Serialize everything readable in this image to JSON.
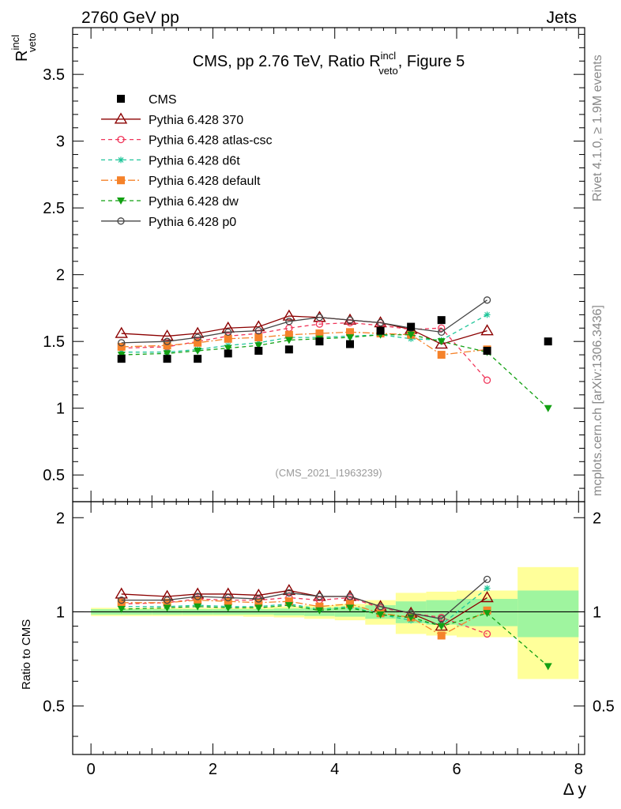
{
  "header": {
    "left": "2760 GeV pp",
    "right": "Jets",
    "title_prefix": "CMS, pp 2.76 TeV, Ratio R",
    "title_sup": "incl",
    "title_sub": "veto",
    "title_suffix": ", Figure 5"
  },
  "side": {
    "rivet": "Rivet 4.1.0, ≥ 1.9M events",
    "mcplots": "mcplots.cern.ch [arXiv:1306.3436]"
  },
  "watermark": "(CMS_2021_I1963239)",
  "colors": {
    "CMS": "#000000",
    "370": "#8b0000",
    "atlas-csc": "#f0365a",
    "d6t": "#20c69a",
    "default": "#f5822a",
    "dw": "#12a012",
    "p0": "#454545",
    "band_inner": "#9ff59f",
    "band_outer": "#ffff9a"
  },
  "chart_data": {
    "type": "scatter",
    "title": "CMS, pp 2.76 TeV, Ratio R_veto^incl, Figure 5",
    "xlabel": "Δ y",
    "ylabel": "R",
    "ylabel_sup": "incl",
    "ylabel_sub": "veto",
    "ratio_ylabel": "Ratio to CMS",
    "xlim": [
      -0.3,
      8.1
    ],
    "ylim": [
      0.3,
      3.85
    ],
    "ratio_ylim": [
      0.35,
      2.25
    ],
    "xticks": [
      0,
      2,
      4,
      6,
      8
    ],
    "xtick_labels": [
      "0",
      "2",
      "4",
      "6",
      "8"
    ],
    "yticks": [
      0.5,
      1,
      1.5,
      2,
      2.5,
      3,
      3.5
    ],
    "ytick_labels": [
      "0.5",
      "1",
      "1.5",
      "2",
      "2.5",
      "3",
      "3.5"
    ],
    "ratio_yticks": [
      0.5,
      1,
      2
    ],
    "ratio_ytick_labels": [
      "0.5",
      "1",
      "2"
    ],
    "data": {
      "name": "CMS",
      "x": [
        0.5,
        1.25,
        1.75,
        2.25,
        2.75,
        3.25,
        3.75,
        4.25,
        4.75,
        5.25,
        5.75,
        6.5,
        7.5
      ],
      "xerr": [
        0.5,
        0.25,
        0.25,
        0.25,
        0.25,
        0.25,
        0.25,
        0.25,
        0.25,
        0.25,
        0.25,
        0.5,
        0.5
      ],
      "y": [
        1.37,
        1.37,
        1.37,
        1.41,
        1.43,
        1.44,
        1.5,
        1.48,
        1.58,
        1.61,
        1.66,
        1.43,
        1.5
      ],
      "band_inner": [
        0.02,
        0.02,
        0.02,
        0.02,
        0.02,
        0.025,
        0.03,
        0.035,
        0.05,
        0.08,
        0.09,
        0.1,
        0.17
      ],
      "band_outer": [
        0.03,
        0.03,
        0.03,
        0.03,
        0.035,
        0.04,
        0.05,
        0.06,
        0.09,
        0.15,
        0.16,
        0.17,
        0.39
      ]
    },
    "series": [
      {
        "name": "Pythia 6.428 370",
        "key": "370",
        "marker": "triangle-open",
        "dash": "",
        "x": [
          0.5,
          1.25,
          1.75,
          2.25,
          2.75,
          3.25,
          3.75,
          4.25,
          4.75,
          5.25,
          5.75,
          6.5
        ],
        "y": [
          1.56,
          1.54,
          1.56,
          1.6,
          1.61,
          1.69,
          1.68,
          1.66,
          1.64,
          1.59,
          1.48,
          1.58
        ],
        "ratio": [
          1.14,
          1.12,
          1.14,
          1.14,
          1.13,
          1.17,
          1.12,
          1.12,
          1.04,
          0.99,
          0.9,
          1.11
        ]
      },
      {
        "name": "Pythia 6.428 atlas-csc",
        "key": "atlas-csc",
        "marker": "circle-open",
        "dash": "5,4",
        "x": [
          0.5,
          1.25,
          1.75,
          2.25,
          2.75,
          3.25,
          3.75,
          4.25,
          4.75,
          5.25,
          5.75,
          6.5
        ],
        "y": [
          1.45,
          1.46,
          1.5,
          1.54,
          1.56,
          1.6,
          1.63,
          1.64,
          1.62,
          1.59,
          1.6,
          1.21
        ],
        "ratio": [
          1.06,
          1.07,
          1.1,
          1.09,
          1.09,
          1.11,
          1.09,
          1.11,
          1.03,
          0.99,
          0.96,
          0.85
        ]
      },
      {
        "name": "Pythia 6.428 d6t",
        "key": "d6t",
        "marker": "star",
        "dash": "5,4",
        "x": [
          0.5,
          1.25,
          1.75,
          2.25,
          2.75,
          3.25,
          3.75,
          4.25,
          4.75,
          5.25,
          5.75,
          6.5
        ],
        "y": [
          1.42,
          1.42,
          1.44,
          1.47,
          1.49,
          1.53,
          1.53,
          1.54,
          1.55,
          1.52,
          1.51,
          1.7
        ],
        "ratio": [
          1.04,
          1.04,
          1.05,
          1.04,
          1.04,
          1.06,
          1.02,
          1.04,
          0.98,
          0.94,
          0.91,
          1.19
        ]
      },
      {
        "name": "Pythia 6.428 default",
        "key": "default",
        "marker": "square",
        "dash": "9,3,2,3",
        "x": [
          0.5,
          1.25,
          1.75,
          2.25,
          2.75,
          3.25,
          3.75,
          4.25,
          4.75,
          5.25,
          5.75,
          6.5
        ],
        "y": [
          1.46,
          1.47,
          1.49,
          1.52,
          1.53,
          1.55,
          1.56,
          1.57,
          1.56,
          1.55,
          1.4,
          1.44
        ],
        "ratio": [
          1.07,
          1.07,
          1.09,
          1.08,
          1.07,
          1.08,
          1.04,
          1.06,
          0.99,
          0.96,
          0.84,
          1.01
        ]
      },
      {
        "name": "Pythia 6.428 dw",
        "key": "dw",
        "marker": "triangle-down",
        "dash": "5,4",
        "x": [
          0.5,
          1.25,
          1.75,
          2.25,
          2.75,
          3.25,
          3.75,
          4.25,
          4.75,
          5.25,
          5.75,
          6.5,
          7.5
        ],
        "y": [
          1.4,
          1.41,
          1.43,
          1.45,
          1.47,
          1.51,
          1.52,
          1.53,
          1.55,
          1.55,
          1.5,
          1.42,
          1.0
        ],
        "ratio": [
          1.02,
          1.03,
          1.04,
          1.03,
          1.03,
          1.05,
          1.01,
          1.03,
          0.98,
          0.96,
          0.9,
          0.99,
          0.67
        ]
      },
      {
        "name": "Pythia 6.428 p0",
        "key": "p0",
        "marker": "circle-open",
        "dash": "",
        "x": [
          0.5,
          1.25,
          1.75,
          2.25,
          2.75,
          3.25,
          3.75,
          4.25,
          4.75,
          5.25,
          5.75,
          6.5
        ],
        "y": [
          1.49,
          1.5,
          1.53,
          1.57,
          1.58,
          1.65,
          1.68,
          1.66,
          1.64,
          1.6,
          1.57,
          1.81
        ],
        "ratio": [
          1.09,
          1.09,
          1.12,
          1.11,
          1.1,
          1.15,
          1.12,
          1.12,
          1.04,
          0.99,
          0.95,
          1.27
        ]
      }
    ]
  }
}
